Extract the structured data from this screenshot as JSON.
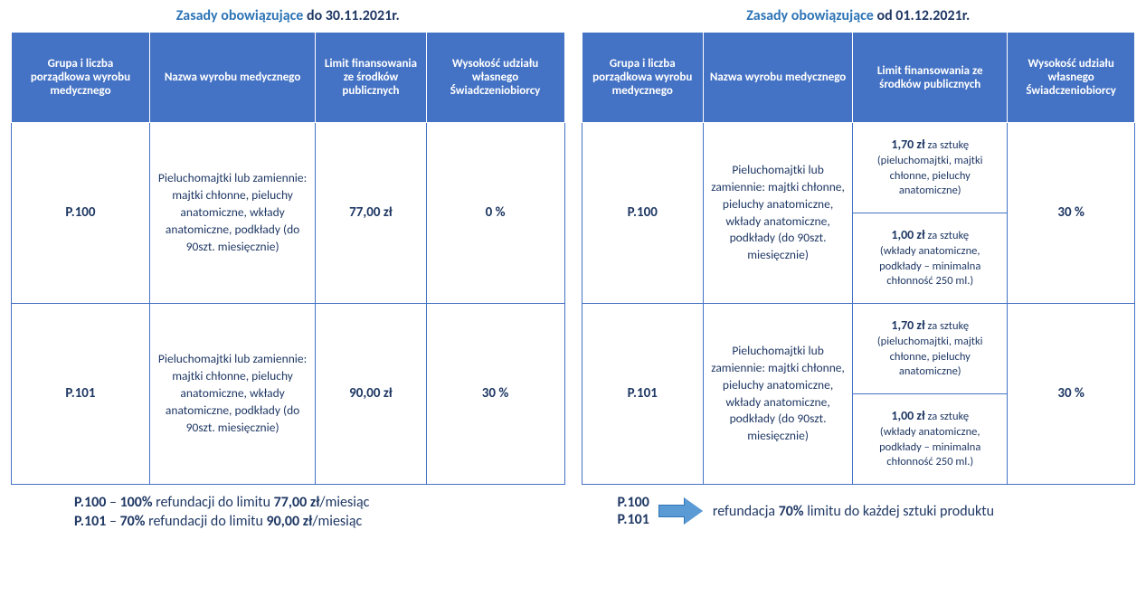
{
  "left": {
    "title_prefix": "Zasady obowiązujące ",
    "title_date": "do 30.11.2021r.",
    "headers": {
      "h1": "Grupa i liczba porządkowa wyrobu medycznego",
      "h2": "Nazwa wyrobu medycznego",
      "h3": "Limit finansowania ze środków publicznych",
      "h4": "Wysokość udziału własnego Świadczeniobiorcy"
    },
    "rows": [
      {
        "code": "P.100",
        "desc": "Pieluchomajtki lub zamiennie: majtki chłonne, pieluchy anatomiczne, wkłady anatomiczne, podkłady (do 90szt. miesięcznie)",
        "limit": "77,00 zł",
        "share": "0 %"
      },
      {
        "code": "P.101",
        "desc": "Pieluchomajtki lub zamiennie: majtki chłonne, pieluchy anatomiczne, wkłady anatomiczne, podkłady (do 90szt. miesięcznie)",
        "limit": "90,00 zł",
        "share": "30 %"
      }
    ],
    "footer": {
      "l1_code": "P.100",
      "l1_dash": " – ",
      "l1_pct": "100%",
      "l1_mid": " refundacji do limitu ",
      "l1_val": "77,00 zł",
      "l1_tail": "/miesiąc",
      "l2_code": "P.101",
      "l2_dash": " – ",
      "l2_pct": "70%",
      "l2_mid": " refundacji do limitu ",
      "l2_val": "90,00 zł",
      "l2_tail": "/miesiąc"
    }
  },
  "right": {
    "title_prefix": "Zasady obowiązujące ",
    "title_date": "od 01.12.2021r.",
    "headers": {
      "h1": "Grupa i liczba porządkowa wyrobu medycznego",
      "h2": "Nazwa wyrobu medycznego",
      "h3": "Limit finansowania ze środków publicznych",
      "h4": "Wysokość udziału własnego Świadczeniobiorcy"
    },
    "limit_cells": {
      "a_price": "1,70 zł",
      "a_unit": " za sztukę",
      "a_note": "(pieluchomajtki, majtki chłonne, pieluchy anatomiczne)",
      "b_price": "1,00 zł",
      "b_unit": " za sztukę",
      "b_note": "(wkłady anatomiczne, podkłady – minimalna chłonność 250 ml.)"
    },
    "rows": [
      {
        "code": "P.100",
        "desc": "Pieluchomajtki lub zamiennie: majtki chłonne, pieluchy anatomiczne, wkłady anatomiczne, podkłady (do 90szt. miesięcznie)",
        "share": "30 %"
      },
      {
        "code": "P.101",
        "desc": "Pieluchomajtki lub zamiennie: majtki chłonne, pieluchy anatomiczne, wkłady anatomiczne, podkłady (do 90szt. miesięcznie)",
        "share": "30 %"
      }
    ],
    "footer": {
      "code1": "P.100",
      "code2": "P.101",
      "text_pre": "refundacja ",
      "text_pct": "70%",
      "text_post": " limitu do każdej sztuki produktu"
    }
  }
}
